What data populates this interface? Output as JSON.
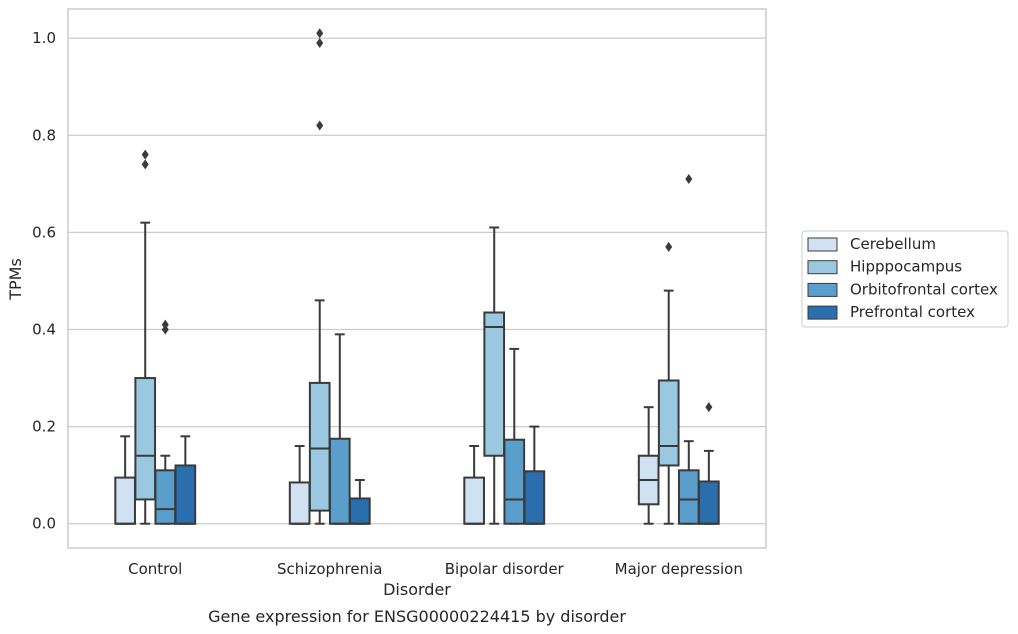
{
  "chart_data": {
    "type": "box",
    "title": "",
    "caption": "Gene expression for ENSG00000224415 by disorder",
    "xlabel": "Disorder",
    "ylabel": "TPMs",
    "ylim": [
      -0.05,
      1.06
    ],
    "yticks": [
      "0.0",
      "0.2",
      "0.4",
      "0.6",
      "0.8",
      "1.0"
    ],
    "ytick_values": [
      0.0,
      0.2,
      0.4,
      0.6,
      0.8,
      1.0
    ],
    "grid": "horizontal",
    "legend_position": "right",
    "categories": [
      "Control",
      "Schizophrenia",
      "Bipolar disorder",
      "Major depression"
    ],
    "series": [
      {
        "name": "Cerebellum",
        "color": "#d0e1f2",
        "boxes": [
          {
            "whislo": 0.0,
            "q1": 0.0,
            "med": 0.0,
            "q3": 0.095,
            "whishi": 0.18,
            "fliers": []
          },
          {
            "whislo": 0.0,
            "q1": 0.0,
            "med": 0.0,
            "q3": 0.085,
            "whishi": 0.16,
            "fliers": []
          },
          {
            "whislo": 0.0,
            "q1": 0.0,
            "med": 0.0,
            "q3": 0.095,
            "whishi": 0.16,
            "fliers": []
          },
          {
            "whislo": 0.0,
            "q1": 0.04,
            "med": 0.09,
            "q3": 0.14,
            "whishi": 0.24,
            "fliers": []
          }
        ]
      },
      {
        "name": "Hipppocampus",
        "color": "#9ac8e0",
        "boxes": [
          {
            "whislo": 0.0,
            "q1": 0.05,
            "med": 0.14,
            "q3": 0.3,
            "whishi": 0.62,
            "fliers": [
              0.74,
              0.76
            ]
          },
          {
            "whislo": 0.0,
            "q1": 0.027,
            "med": 0.155,
            "q3": 0.29,
            "whishi": 0.46,
            "fliers": [
              0.82,
              0.99,
              1.01
            ]
          },
          {
            "whislo": 0.0,
            "q1": 0.14,
            "med": 0.405,
            "q3": 0.435,
            "whishi": 0.61,
            "fliers": []
          },
          {
            "whislo": 0.0,
            "q1": 0.12,
            "med": 0.16,
            "q3": 0.295,
            "whishi": 0.48,
            "fliers": [
              0.57
            ]
          }
        ]
      },
      {
        "name": "Orbitofrontal cortex",
        "color": "#5a9fcc",
        "boxes": [
          {
            "whislo": 0.0,
            "q1": 0.0,
            "med": 0.03,
            "q3": 0.11,
            "whishi": 0.14,
            "fliers": [
              0.4,
              0.41
            ]
          },
          {
            "whislo": 0.0,
            "q1": 0.0,
            "med": 0.0,
            "q3": 0.175,
            "whishi": 0.39,
            "fliers": []
          },
          {
            "whislo": 0.0,
            "q1": 0.0,
            "med": 0.05,
            "q3": 0.173,
            "whishi": 0.36,
            "fliers": []
          },
          {
            "whislo": 0.0,
            "q1": 0.0,
            "med": 0.05,
            "q3": 0.11,
            "whishi": 0.17,
            "fliers": [
              0.71
            ]
          }
        ]
      },
      {
        "name": "Prefrontal cortex",
        "color": "#2a6eae",
        "boxes": [
          {
            "whislo": 0.0,
            "q1": 0.0,
            "med": 0.0,
            "q3": 0.12,
            "whishi": 0.18,
            "fliers": []
          },
          {
            "whislo": 0.0,
            "q1": 0.0,
            "med": 0.0,
            "q3": 0.052,
            "whishi": 0.09,
            "fliers": []
          },
          {
            "whislo": 0.0,
            "q1": 0.0,
            "med": 0.0,
            "q3": 0.108,
            "whishi": 0.2,
            "fliers": []
          },
          {
            "whislo": 0.0,
            "q1": 0.0,
            "med": 0.0,
            "q3": 0.087,
            "whishi": 0.15,
            "fliers": [
              0.24
            ]
          }
        ]
      }
    ]
  }
}
